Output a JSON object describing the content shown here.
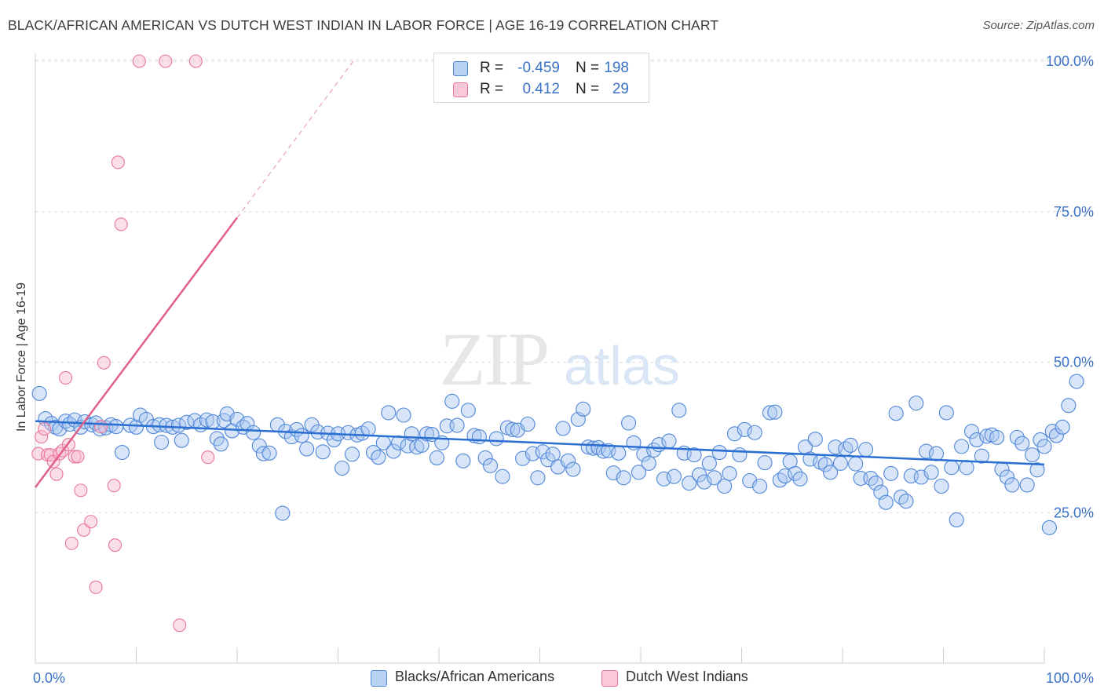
{
  "title": "BLACK/AFRICAN AMERICAN VS DUTCH WEST INDIAN IN LABOR FORCE | AGE 16-19 CORRELATION CHART",
  "source": "Source: ZipAtlas.com",
  "watermark": {
    "zip": "ZIP",
    "atlas": "atlas"
  },
  "legend_top": {
    "rows": [
      {
        "r_label": "R =",
        "r_value": "-0.459",
        "n_label": "N =",
        "n_value": "198"
      },
      {
        "r_label": "R =",
        "r_value": "0.412",
        "n_label": "N =",
        "n_value": "29"
      }
    ]
  },
  "colors": {
    "blue": "#4f86d9",
    "blue_fill": "#a9c6f0",
    "pink": "#e8769b",
    "pink_fill": "#f7b9cc",
    "grid": "#dcdcdc",
    "tick_label": "#3a72c8"
  },
  "chart_data": {
    "type": "scatter",
    "title": "BLACK/AFRICAN AMERICAN VS DUTCH WEST INDIAN IN LABOR FORCE | AGE 16-19 CORRELATION CHART",
    "xlabel": "",
    "ylabel": "In Labor Force | Age 16-19",
    "xlim": [
      0,
      100
    ],
    "ylim": [
      0,
      102
    ],
    "x_tick_labels": [
      "0.0%",
      "100.0%"
    ],
    "y_tick_values": [
      25,
      50,
      75,
      100
    ],
    "y_tick_labels": [
      "25.0%",
      "50.0%",
      "75.0%",
      "100.0%"
    ],
    "grid": true,
    "legend": [
      "Blacks/African Americans",
      "Dutch West Indians"
    ],
    "series": [
      {
        "name": "Blacks/African Americans",
        "color": "#4f86d9",
        "trend": {
          "x": [
            0,
            100
          ],
          "y": [
            40.2,
            33.0
          ]
        },
        "points": [
          [
            0.4,
            44.8
          ],
          [
            1.0,
            40.6
          ],
          [
            1.6,
            39.8
          ],
          [
            2.0,
            39.2
          ],
          [
            2.4,
            38.9
          ],
          [
            3.0,
            40.2
          ],
          [
            3.4,
            39.7
          ],
          [
            3.9,
            40.4
          ],
          [
            4.5,
            39.2
          ],
          [
            4.9,
            40.1
          ],
          [
            5.6,
            39.6
          ],
          [
            6.0,
            39.9
          ],
          [
            6.4,
            38.9
          ],
          [
            7.0,
            39.1
          ],
          [
            7.5,
            39.6
          ],
          [
            8.0,
            39.3
          ],
          [
            8.6,
            35.0
          ],
          [
            9.4,
            39.5
          ],
          [
            10.0,
            39.2
          ],
          [
            10.4,
            41.2
          ],
          [
            11.0,
            40.5
          ],
          [
            11.7,
            39.3
          ],
          [
            12.3,
            39.6
          ],
          [
            12.5,
            36.7
          ],
          [
            13.0,
            39.5
          ],
          [
            13.6,
            39.2
          ],
          [
            14.2,
            39.5
          ],
          [
            14.5,
            37.0
          ],
          [
            15.0,
            40.0
          ],
          [
            15.8,
            40.3
          ],
          [
            16.4,
            39.6
          ],
          [
            17.0,
            40.4
          ],
          [
            17.6,
            40.1
          ],
          [
            18.0,
            37.3
          ],
          [
            18.4,
            36.4
          ],
          [
            18.7,
            40.3
          ],
          [
            19.0,
            41.4
          ],
          [
            19.5,
            38.6
          ],
          [
            20.0,
            40.5
          ],
          [
            20.6,
            39.2
          ],
          [
            21.0,
            39.8
          ],
          [
            21.6,
            38.3
          ],
          [
            22.2,
            36.1
          ],
          [
            22.6,
            34.8
          ],
          [
            23.2,
            34.9
          ],
          [
            24.0,
            39.6
          ],
          [
            24.5,
            24.9
          ],
          [
            24.8,
            38.5
          ],
          [
            25.4,
            37.6
          ],
          [
            25.9,
            38.8
          ],
          [
            26.4,
            37.8
          ],
          [
            26.9,
            35.6
          ],
          [
            27.4,
            39.6
          ],
          [
            28.0,
            38.4
          ],
          [
            28.5,
            35.1
          ],
          [
            29.0,
            38.2
          ],
          [
            29.6,
            37.1
          ],
          [
            30.0,
            38.1
          ],
          [
            30.4,
            32.4
          ],
          [
            31.0,
            38.3
          ],
          [
            31.4,
            34.7
          ],
          [
            31.9,
            37.9
          ],
          [
            32.4,
            38.2
          ],
          [
            33.0,
            38.9
          ],
          [
            33.5,
            35.0
          ],
          [
            34.0,
            34.2
          ],
          [
            34.5,
            36.6
          ],
          [
            35.0,
            41.6
          ],
          [
            35.5,
            35.2
          ],
          [
            36.0,
            36.6
          ],
          [
            36.5,
            41.2
          ],
          [
            36.9,
            36.1
          ],
          [
            37.3,
            38.1
          ],
          [
            37.8,
            35.9
          ],
          [
            38.3,
            36.2
          ],
          [
            38.8,
            38.1
          ],
          [
            39.3,
            38.0
          ],
          [
            39.8,
            34.1
          ],
          [
            40.3,
            36.6
          ],
          [
            40.8,
            39.4
          ],
          [
            41.3,
            43.5
          ],
          [
            41.8,
            39.5
          ],
          [
            42.4,
            33.6
          ],
          [
            42.9,
            42.0
          ],
          [
            43.5,
            37.8
          ],
          [
            44.0,
            37.6
          ],
          [
            44.6,
            34.1
          ],
          [
            45.1,
            32.8
          ],
          [
            45.7,
            37.3
          ],
          [
            46.3,
            31.0
          ],
          [
            46.8,
            39.1
          ],
          [
            47.3,
            38.8
          ],
          [
            47.8,
            38.7
          ],
          [
            48.3,
            34.0
          ],
          [
            48.8,
            39.7
          ],
          [
            49.3,
            34.8
          ],
          [
            49.8,
            30.8
          ],
          [
            50.3,
            35.1
          ],
          [
            50.8,
            33.8
          ],
          [
            51.3,
            34.7
          ],
          [
            51.8,
            32.6
          ],
          [
            52.3,
            39.0
          ],
          [
            52.8,
            33.6
          ],
          [
            53.3,
            32.2
          ],
          [
            53.8,
            40.5
          ],
          [
            54.3,
            42.2
          ],
          [
            54.8,
            35.9
          ],
          [
            55.3,
            35.7
          ],
          [
            55.8,
            35.8
          ],
          [
            56.3,
            35.2
          ],
          [
            56.8,
            35.3
          ],
          [
            57.3,
            31.6
          ],
          [
            57.8,
            34.9
          ],
          [
            58.3,
            30.8
          ],
          [
            58.8,
            39.9
          ],
          [
            59.3,
            36.6
          ],
          [
            59.8,
            31.7
          ],
          [
            60.3,
            34.7
          ],
          [
            60.8,
            33.2
          ],
          [
            61.3,
            35.4
          ],
          [
            61.8,
            36.3
          ],
          [
            62.3,
            30.6
          ],
          [
            62.8,
            36.9
          ],
          [
            63.3,
            31.0
          ],
          [
            63.8,
            42.0
          ],
          [
            64.3,
            34.9
          ],
          [
            64.8,
            29.9
          ],
          [
            65.3,
            34.6
          ],
          [
            65.8,
            31.3
          ],
          [
            66.3,
            30.1
          ],
          [
            66.8,
            33.2
          ],
          [
            67.3,
            30.8
          ],
          [
            67.8,
            35.0
          ],
          [
            68.3,
            29.4
          ],
          [
            68.8,
            31.5
          ],
          [
            69.3,
            38.1
          ],
          [
            69.8,
            34.6
          ],
          [
            70.3,
            38.8
          ],
          [
            70.8,
            30.3
          ],
          [
            71.3,
            38.3
          ],
          [
            71.8,
            29.4
          ],
          [
            72.3,
            33.3
          ],
          [
            72.8,
            41.6
          ],
          [
            73.3,
            41.7
          ],
          [
            73.8,
            30.4
          ],
          [
            74.3,
            31.1
          ],
          [
            74.8,
            33.5
          ],
          [
            75.3,
            31.5
          ],
          [
            75.8,
            30.6
          ],
          [
            76.3,
            35.9
          ],
          [
            76.8,
            33.9
          ],
          [
            77.3,
            37.2
          ],
          [
            77.8,
            33.4
          ],
          [
            78.3,
            33.0
          ],
          [
            78.8,
            31.7
          ],
          [
            79.3,
            35.9
          ],
          [
            79.8,
            33.2
          ],
          [
            80.3,
            35.6
          ],
          [
            80.8,
            36.2
          ],
          [
            81.3,
            33.1
          ],
          [
            81.8,
            30.7
          ],
          [
            82.3,
            35.5
          ],
          [
            82.8,
            30.7
          ],
          [
            83.3,
            29.9
          ],
          [
            83.8,
            28.4
          ],
          [
            84.3,
            26.7
          ],
          [
            84.8,
            31.5
          ],
          [
            85.3,
            41.5
          ],
          [
            85.8,
            27.6
          ],
          [
            86.3,
            26.9
          ],
          [
            86.8,
            31.1
          ],
          [
            87.3,
            43.2
          ],
          [
            87.8,
            30.9
          ],
          [
            88.3,
            35.2
          ],
          [
            88.8,
            31.7
          ],
          [
            89.3,
            34.8
          ],
          [
            89.8,
            29.4
          ],
          [
            90.3,
            41.6
          ],
          [
            90.8,
            32.5
          ],
          [
            91.3,
            23.8
          ],
          [
            91.8,
            36.0
          ],
          [
            92.3,
            32.5
          ],
          [
            92.8,
            38.5
          ],
          [
            93.3,
            37.1
          ],
          [
            93.8,
            34.4
          ],
          [
            94.3,
            37.7
          ],
          [
            94.8,
            37.9
          ],
          [
            95.3,
            37.5
          ],
          [
            95.8,
            32.2
          ],
          [
            96.3,
            30.9
          ],
          [
            96.8,
            29.6
          ],
          [
            97.3,
            37.5
          ],
          [
            97.8,
            36.5
          ],
          [
            98.3,
            29.6
          ],
          [
            98.8,
            34.6
          ],
          [
            99.3,
            32.1
          ],
          [
            99.6,
            37.1
          ],
          [
            100.0,
            36.0
          ],
          [
            100.5,
            22.5
          ],
          [
            100.8,
            38.5
          ],
          [
            101.2,
            37.8
          ],
          [
            101.8,
            39.2
          ],
          [
            102.4,
            42.8
          ],
          [
            103.2,
            46.8
          ]
        ]
      },
      {
        "name": "Dutch West Indians",
        "color": "#e8769b",
        "trend": {
          "x": [
            0,
            20
          ],
          "y": [
            29.2,
            74.0
          ],
          "dashed_to": [
            31.5,
            100
          ]
        },
        "points": [
          [
            0.3,
            34.8
          ],
          [
            0.6,
            37.6
          ],
          [
            0.9,
            38.9
          ],
          [
            1.2,
            34.6
          ],
          [
            1.5,
            34.6
          ],
          [
            1.8,
            33.5
          ],
          [
            2.1,
            31.4
          ],
          [
            2.4,
            34.8
          ],
          [
            2.7,
            35.3
          ],
          [
            3.0,
            47.4
          ],
          [
            3.3,
            36.3
          ],
          [
            3.6,
            19.9
          ],
          [
            3.9,
            34.3
          ],
          [
            4.2,
            34.3
          ],
          [
            4.5,
            28.7
          ],
          [
            4.8,
            22.1
          ],
          [
            5.5,
            23.5
          ],
          [
            6.0,
            12.6
          ],
          [
            6.5,
            39.3
          ],
          [
            6.8,
            49.9
          ],
          [
            7.8,
            29.5
          ],
          [
            7.9,
            19.6
          ],
          [
            8.2,
            83.2
          ],
          [
            8.5,
            72.9
          ],
          [
            10.3,
            100.0
          ],
          [
            12.9,
            100.0
          ],
          [
            14.3,
            6.3
          ],
          [
            15.9,
            100.0
          ],
          [
            17.1,
            34.2
          ]
        ]
      }
    ]
  },
  "legend_bottom": [
    {
      "label": "Blacks/African Americans"
    },
    {
      "label": "Dutch West Indians"
    }
  ]
}
